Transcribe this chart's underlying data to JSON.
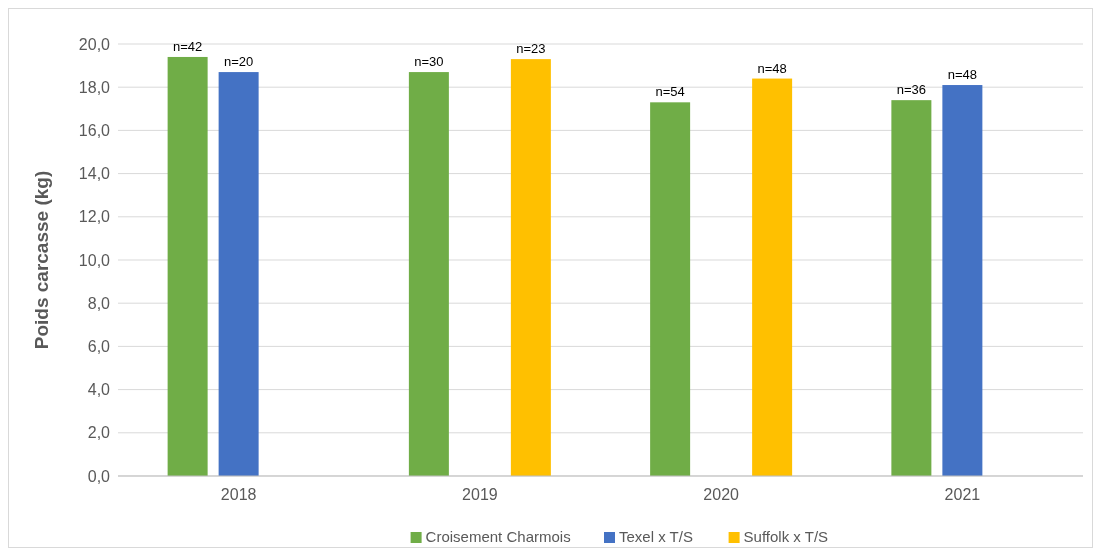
{
  "chart_data": {
    "type": "bar",
    "ylabel": "Poids carcasse (kg)",
    "categories": [
      "2018",
      "2019",
      "2020",
      "2021"
    ],
    "series": [
      {
        "name": "Croisement Charmois",
        "color": "#70ad47",
        "values": [
          19.4,
          18.7,
          17.3,
          17.4
        ]
      },
      {
        "name": "Texel x T/S",
        "color": "#4472c4",
        "values": [
          18.7,
          null,
          null,
          18.1
        ]
      },
      {
        "name": "Suffolk x T/S",
        "color": "#ffc000",
        "values": [
          null,
          19.3,
          18.4,
          null
        ]
      }
    ],
    "annotations": [
      "n=42",
      "n=30",
      "n=54",
      "n=36",
      "n=20",
      "n=48",
      "n=23",
      "n=48"
    ],
    "ylim": [
      0,
      20
    ],
    "yticks": [
      {
        "value": 0,
        "label": "0,0"
      },
      {
        "value": 2,
        "label": "2,0"
      },
      {
        "value": 4,
        "label": "4,0"
      },
      {
        "value": 6,
        "label": "6,0"
      },
      {
        "value": 8,
        "label": "8,0"
      },
      {
        "value": 10,
        "label": "10,0"
      },
      {
        "value": 12,
        "label": "12,0"
      },
      {
        "value": 14,
        "label": "14,0"
      },
      {
        "value": 16,
        "label": "16,0"
      },
      {
        "value": 18,
        "label": "18,0"
      },
      {
        "value": 20,
        "label": "20,0"
      }
    ],
    "grid": "y",
    "legend": "bottom"
  }
}
